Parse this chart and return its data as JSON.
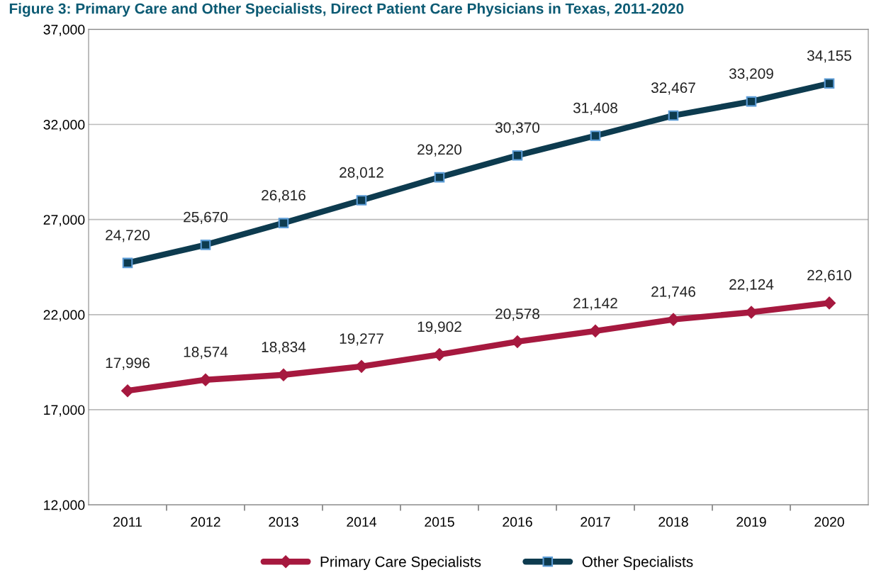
{
  "chart_data": {
    "type": "line",
    "title": "Figure 3: Primary Care and Other Specialists, Direct Patient Care Physicians in Texas, 2011-2020",
    "categories": [
      "2011",
      "2012",
      "2013",
      "2014",
      "2015",
      "2016",
      "2017",
      "2018",
      "2019",
      "2020"
    ],
    "series": [
      {
        "name": "Primary Care Specialists",
        "color": "#a6193f",
        "marker": "diamond",
        "values": [
          17996,
          18574,
          18834,
          19277,
          19902,
          20578,
          21142,
          21746,
          22124,
          22610
        ],
        "value_labels": [
          "17,996",
          "18,574",
          "18,834",
          "19,277",
          "19,902",
          "20,578",
          "21,142",
          "21,746",
          "22,124",
          "22,610"
        ]
      },
      {
        "name": "Other Specialists",
        "color": "#0d3b4f",
        "marker": "square",
        "values": [
          24720,
          25670,
          26816,
          28012,
          29220,
          30370,
          31408,
          32467,
          33209,
          34155
        ],
        "value_labels": [
          "24,720",
          "25,670",
          "26,816",
          "28,012",
          "29,220",
          "30,370",
          "31,408",
          "32,467",
          "33,209",
          "34,155"
        ]
      }
    ],
    "ylim": [
      12000,
      37000
    ],
    "yticks": [
      {
        "value": 12000,
        "label": "12,000"
      },
      {
        "value": 17000,
        "label": "17,000"
      },
      {
        "value": 22000,
        "label": "22,000"
      },
      {
        "value": 27000,
        "label": "27,000"
      },
      {
        "value": 32000,
        "label": "32,000"
      },
      {
        "value": 37000,
        "label": "37,000"
      }
    ],
    "grid": "y",
    "legend": "bottom",
    "line_style": "solid"
  }
}
